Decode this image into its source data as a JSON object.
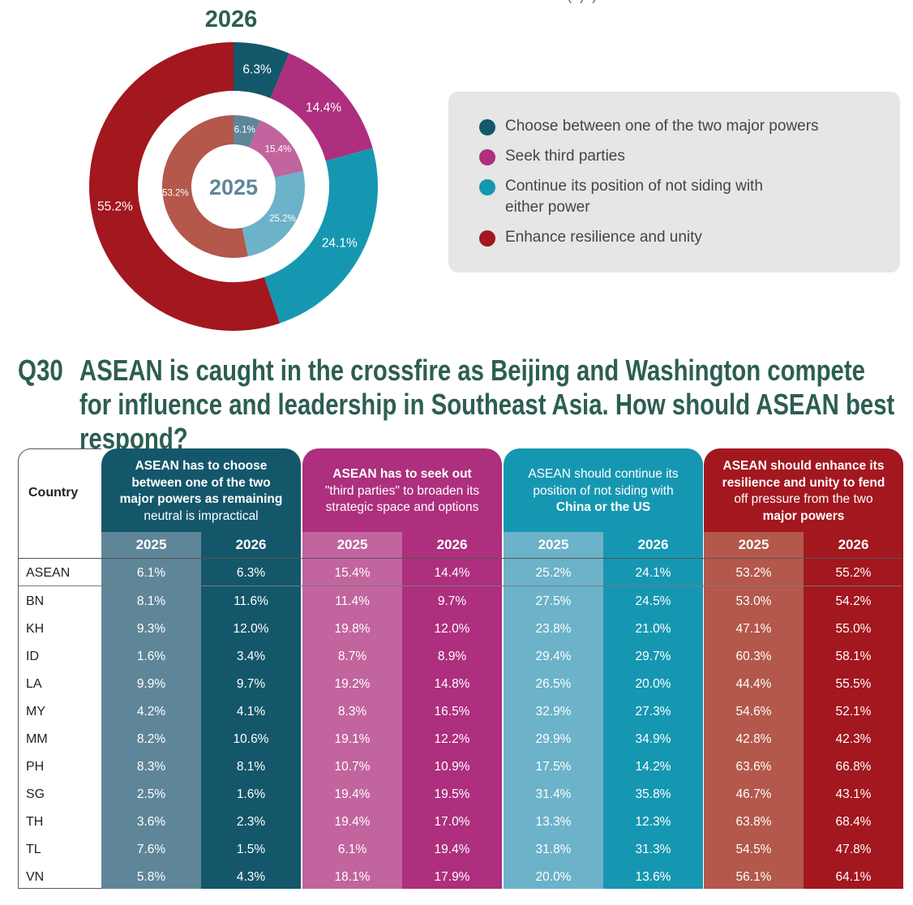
{
  "header": {
    "top_cut_text": "( ) )",
    "donut_outer_title": "2026",
    "donut_inner_title": "2025"
  },
  "colors": {
    "choose": "#14576b",
    "third": "#ad2f7d",
    "continue": "#1697b1",
    "enhance": "#a3171f",
    "inner_choose": "#5f8698",
    "inner_third": "#c2649e",
    "inner_continue": "#6cb2c9",
    "inner_enhance": "#b3584a",
    "title_green": "#2c5e52"
  },
  "legend": {
    "items": [
      {
        "label": "Choose between one of the two major powers",
        "color": "#14576b"
      },
      {
        "label": "Seek third parties",
        "color": "#ad2f7d"
      },
      {
        "label": "Continue its position of not siding with either power",
        "color": "#1697b1"
      },
      {
        "label": "Enhance resilience and unity",
        "color": "#a3171f"
      }
    ]
  },
  "question": {
    "number": "Q30",
    "text": "ASEAN is caught in the crossfire as Beijing and Washington compete for influence and leadership in Southeast Asia. How should ASEAN best respond?"
  },
  "chart_data": {
    "type": "pie",
    "title": "2026",
    "subtitle": "2025",
    "categories": [
      "Choose between one of the two major powers",
      "Seek third parties",
      "Continue its position of not siding with either power",
      "Enhance resilience and unity"
    ],
    "series": [
      {
        "name": "2026",
        "ring": "outer",
        "values": [
          6.3,
          14.4,
          24.1,
          55.2
        ],
        "labels": [
          "6.3%",
          "14.4%",
          "24.1%",
          "55.2%"
        ]
      },
      {
        "name": "2025",
        "ring": "inner",
        "values": [
          6.1,
          15.4,
          25.2,
          53.2
        ],
        "labels": [
          "6.1%",
          "15.4%",
          "25.2%",
          "53.2%"
        ]
      }
    ]
  },
  "table": {
    "country_header": "Country",
    "year_labels": [
      "2025",
      "2026"
    ],
    "groups": [
      {
        "title_lines": [
          {
            "t": "ASEAN has to choose",
            "b": true
          },
          {
            "t": "between one of the two",
            "b": true
          },
          {
            "t": "major powers as remaining",
            "b": true
          },
          {
            "t": "neutral is impractical",
            "b": false
          }
        ]
      },
      {
        "title_lines": [
          {
            "t": "ASEAN has to seek out",
            "b": true
          },
          {
            "t": "\"third parties\" to broaden its",
            "b": false
          },
          {
            "t": "strategic space and options",
            "b": false
          }
        ]
      },
      {
        "title_lines": [
          {
            "t": "ASEAN should continue its",
            "b": false
          },
          {
            "t": "position of not siding with",
            "b": false
          },
          {
            "t": "China or the US",
            "b": true
          }
        ]
      },
      {
        "title_lines": [
          {
            "t": "ASEAN should enhance its",
            "b": true
          },
          {
            "t": "resilience and unity to fend",
            "b": true
          },
          {
            "t": "off pressure from the two",
            "b": false
          },
          {
            "t": "major powers",
            "b": true
          }
        ]
      }
    ],
    "rows": [
      {
        "country": "ASEAN",
        "values": [
          "6.1%",
          "6.3%",
          "15.4%",
          "14.4%",
          "25.2%",
          "24.1%",
          "53.2%",
          "55.2%"
        ]
      },
      {
        "country": "BN",
        "values": [
          "8.1%",
          "11.6%",
          "11.4%",
          "9.7%",
          "27.5%",
          "24.5%",
          "53.0%",
          "54.2%"
        ]
      },
      {
        "country": "KH",
        "values": [
          "9.3%",
          "12.0%",
          "19.8%",
          "12.0%",
          "23.8%",
          "21.0%",
          "47.1%",
          "55.0%"
        ]
      },
      {
        "country": "ID",
        "values": [
          "1.6%",
          "3.4%",
          "8.7%",
          "8.9%",
          "29.4%",
          "29.7%",
          "60.3%",
          "58.1%"
        ]
      },
      {
        "country": "LA",
        "values": [
          "9.9%",
          "9.7%",
          "19.2%",
          "14.8%",
          "26.5%",
          "20.0%",
          "44.4%",
          "55.5%"
        ]
      },
      {
        "country": "MY",
        "values": [
          "4.2%",
          "4.1%",
          "8.3%",
          "16.5%",
          "32.9%",
          "27.3%",
          "54.6%",
          "52.1%"
        ]
      },
      {
        "country": "MM",
        "values": [
          "8.2%",
          "10.6%",
          "19.1%",
          "12.2%",
          "29.9%",
          "34.9%",
          "42.8%",
          "42.3%"
        ]
      },
      {
        "country": "PH",
        "values": [
          "8.3%",
          "8.1%",
          "10.7%",
          "10.9%",
          "17.5%",
          "14.2%",
          "63.6%",
          "66.8%"
        ]
      },
      {
        "country": "SG",
        "values": [
          "2.5%",
          "1.6%",
          "19.4%",
          "19.5%",
          "31.4%",
          "35.8%",
          "46.7%",
          "43.1%"
        ]
      },
      {
        "country": "TH",
        "values": [
          "3.6%",
          "2.3%",
          "19.4%",
          "17.0%",
          "13.3%",
          "12.3%",
          "63.8%",
          "68.4%"
        ]
      },
      {
        "country": "TL",
        "values": [
          "7.6%",
          "1.5%",
          "6.1%",
          "19.4%",
          "31.8%",
          "31.3%",
          "54.5%",
          "47.8%"
        ]
      },
      {
        "country": "VN",
        "values": [
          "5.8%",
          "4.3%",
          "18.1%",
          "17.9%",
          "20.0%",
          "13.6%",
          "56.1%",
          "64.1%"
        ]
      }
    ]
  }
}
